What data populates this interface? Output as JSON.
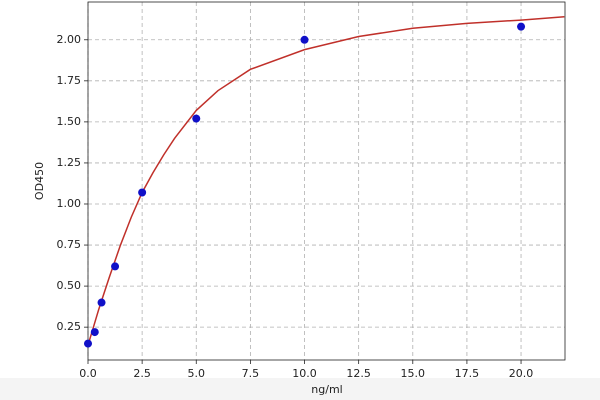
{
  "chart_data": {
    "type": "scatter",
    "xlabel": "ng/ml",
    "ylabel": "OD450",
    "xlim": [
      0,
      22.03
    ],
    "ylim": [
      0.05,
      2.23
    ],
    "xticks": [
      {
        "value": 0,
        "label": "0.0"
      },
      {
        "value": 2.5,
        "label": "2.5"
      },
      {
        "value": 5,
        "label": "5.0"
      },
      {
        "value": 7.5,
        "label": "7.5"
      },
      {
        "value": 10,
        "label": "10.0"
      },
      {
        "value": 12.5,
        "label": "12.5"
      },
      {
        "value": 15,
        "label": "15.0"
      },
      {
        "value": 17.5,
        "label": "17.5"
      },
      {
        "value": 20,
        "label": "20.0"
      }
    ],
    "yticks": [
      0.25,
      {
        "value": 0.5,
        "label": "0.50"
      },
      0.75,
      {
        "value": 1,
        "label": "1.00"
      },
      1.25,
      {
        "value": 1.5,
        "label": "1.50"
      },
      1.75,
      {
        "value": 2,
        "label": "2.00"
      }
    ],
    "grid": true,
    "series": [
      {
        "type": "scatter",
        "color": "#1010c8",
        "x": [
          0,
          0.3125,
          0.625,
          1.25,
          2.5,
          5,
          10,
          20
        ],
        "values": [
          0.15,
          0.22,
          0.4,
          0.62,
          1.07,
          1.52,
          2.0,
          2.08
        ]
      },
      {
        "type": "line",
        "color": "#c0302a",
        "x": [
          0,
          0.25,
          0.5,
          0.75,
          1,
          1.5,
          2,
          2.5,
          3,
          3.5,
          4,
          5,
          6,
          7.5,
          10,
          12.5,
          15,
          17.5,
          20,
          22
        ],
        "values": [
          0.14,
          0.25,
          0.36,
          0.46,
          0.56,
          0.75,
          0.92,
          1.07,
          1.19,
          1.3,
          1.4,
          1.57,
          1.69,
          1.82,
          1.94,
          2.02,
          2.07,
          2.1,
          2.12,
          2.14
        ]
      }
    ]
  }
}
